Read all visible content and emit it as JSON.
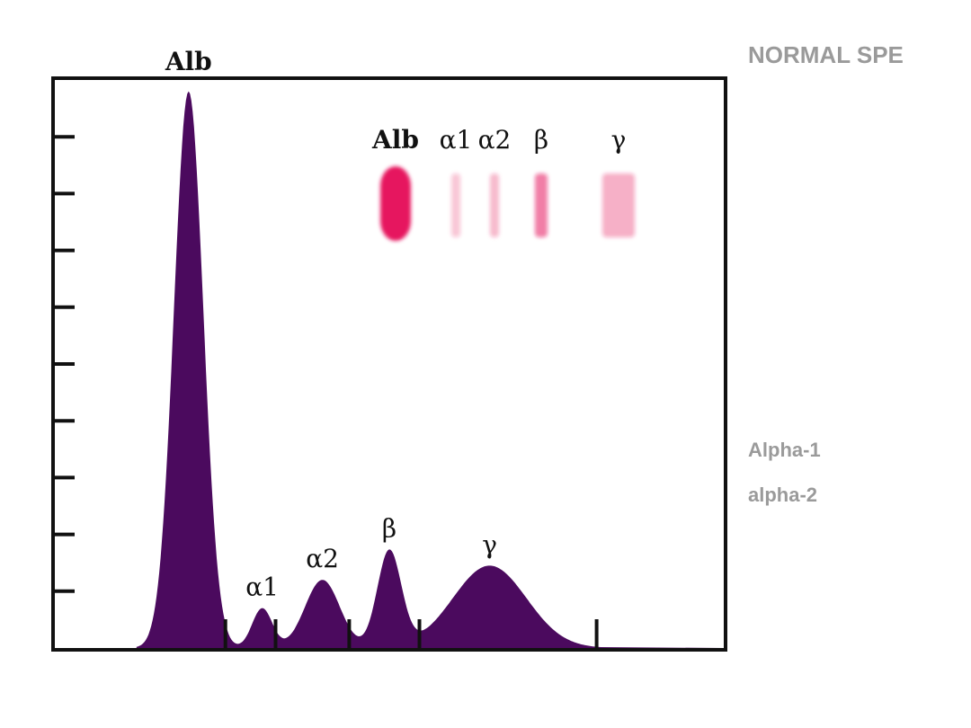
{
  "side_title": "NORMAL SPE",
  "side_labels": [
    "Alpha-1",
    "alpha-2"
  ],
  "colors": {
    "curve_fill": "#4b0a5e",
    "gel_band": "#e6185e",
    "frame": "#111111"
  },
  "chart_data": {
    "type": "area",
    "title": "",
    "xlabel": "",
    "ylabel": "",
    "ylim": [
      0,
      100
    ],
    "grid": false,
    "y_ticks": 10,
    "peaks": [
      {
        "label": "Alb",
        "position": 20,
        "height": 98,
        "width": 2.2
      },
      {
        "label": "α1",
        "position": 31,
        "height": 7,
        "width": 1.5
      },
      {
        "label": "α2",
        "position": 40,
        "height": 12,
        "width": 2.6
      },
      {
        "label": "β",
        "position": 50,
        "height": 17,
        "width": 1.8
      },
      {
        "label": "γ",
        "position": 65,
        "height": 14.5,
        "width": 5.5
      }
    ],
    "fraction_boundaries": [
      25.5,
      33,
      44,
      54.5,
      81
    ],
    "gel_bands": [
      {
        "label": "Alb",
        "intensity": 1.0
      },
      {
        "label": "α1",
        "intensity": 0.25
      },
      {
        "label": "α2",
        "intensity": 0.3
      },
      {
        "label": "β",
        "intensity": 0.55
      },
      {
        "label": "γ",
        "intensity": 0.35
      }
    ]
  }
}
